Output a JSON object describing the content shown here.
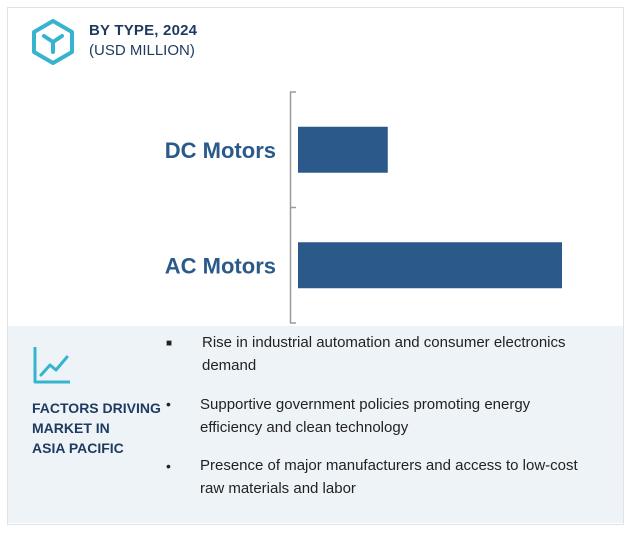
{
  "header": {
    "title": "BY TYPE, 2024",
    "subtitle": "(USD MILLION)"
  },
  "chart_data": {
    "type": "bar",
    "orientation": "horizontal",
    "categories": [
      "DC Motors",
      "AC Motors"
    ],
    "values": [
      0.34,
      1.0
    ],
    "value_note": "relative bar lengths; no values printed",
    "xlabel": "",
    "ylabel": ""
  },
  "factors": {
    "heading_lines": [
      "FACTORS DRIVING",
      "MARKET IN",
      "ASIA PACIFIC"
    ],
    "bullets": [
      {
        "marker": "■",
        "lines": [
          "Rise in industrial automation and consumer electronics",
          "demand"
        ]
      },
      {
        "marker": "•",
        "lines": [
          "Supportive government policies promoting energy",
          "efficiency and clean technology"
        ]
      },
      {
        "marker": "•",
        "lines": [
          "Presence of major manufacturers and access to low-cost",
          "raw materials and labor"
        ]
      }
    ]
  },
  "colors": {
    "bar": "#2b5a8a",
    "label": "#2b5a8a",
    "accent_icon": "#37b3d0",
    "panel_bg": "#eef3f8"
  }
}
